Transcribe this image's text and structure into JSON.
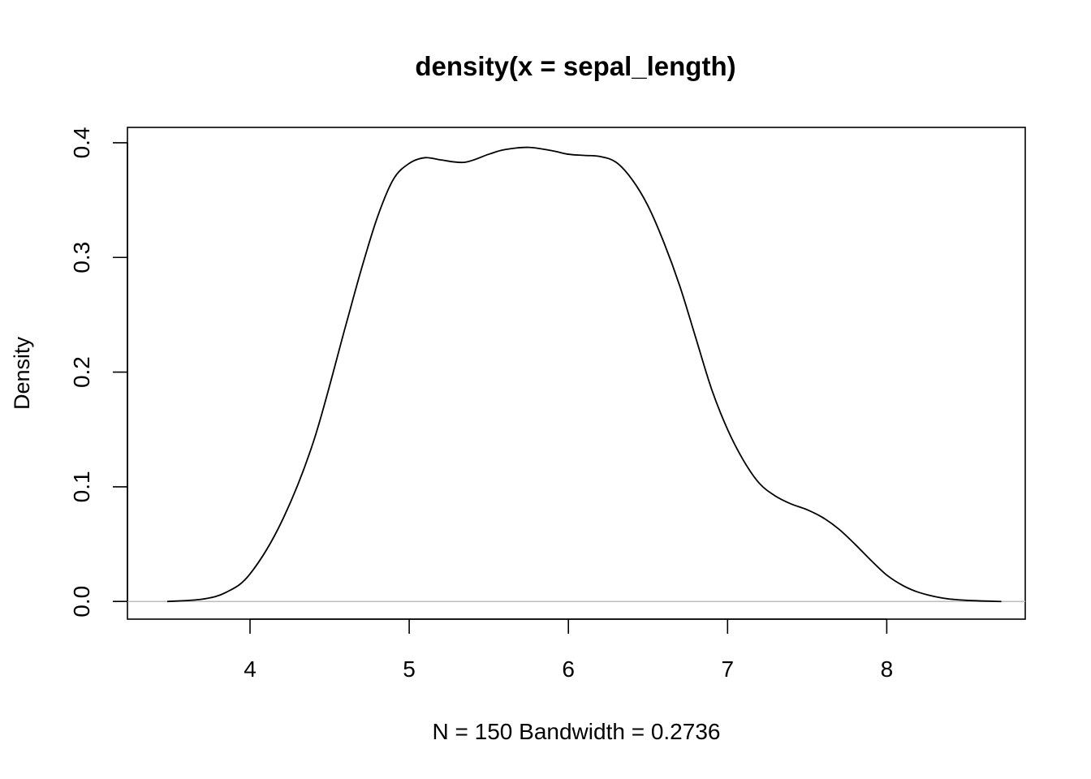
{
  "chart_data": {
    "type": "line",
    "title": "density(x = sepal_length)",
    "xlabel": "N = 150   Bandwidth = 0.2736",
    "ylabel": "Density",
    "xlim": [
      3.23,
      8.87
    ],
    "ylim": [
      -0.0154,
      0.4134
    ],
    "x_ticks": [
      "4",
      "5",
      "6",
      "7",
      "8"
    ],
    "y_ticks": [
      "0.0",
      "0.1",
      "0.2",
      "0.3",
      "0.4"
    ],
    "baseline": 0,
    "colors": {
      "line": "#000000",
      "baseline": "#bebebe",
      "frame": "#000000"
    },
    "series": [
      {
        "x": [
          3.48,
          3.7,
          3.85,
          4.0,
          4.2,
          4.4,
          4.6,
          4.7,
          4.8,
          4.9,
          5.0,
          5.1,
          5.2,
          5.35,
          5.5,
          5.6,
          5.75,
          5.9,
          6.0,
          6.1,
          6.2,
          6.3,
          6.4,
          6.5,
          6.6,
          6.7,
          6.8,
          6.9,
          7.0,
          7.1,
          7.2,
          7.3,
          7.4,
          7.5,
          7.6,
          7.7,
          7.8,
          7.9,
          8.0,
          8.1,
          8.2,
          8.35,
          8.5,
          8.72
        ],
        "y": [
          0.0,
          0.002,
          0.008,
          0.024,
          0.07,
          0.14,
          0.24,
          0.29,
          0.335,
          0.368,
          0.382,
          0.387,
          0.385,
          0.383,
          0.39,
          0.394,
          0.396,
          0.393,
          0.39,
          0.389,
          0.388,
          0.383,
          0.368,
          0.345,
          0.313,
          0.275,
          0.23,
          0.185,
          0.15,
          0.123,
          0.103,
          0.092,
          0.085,
          0.08,
          0.073,
          0.063,
          0.05,
          0.036,
          0.023,
          0.014,
          0.008,
          0.003,
          0.001,
          0.0
        ]
      }
    ]
  }
}
